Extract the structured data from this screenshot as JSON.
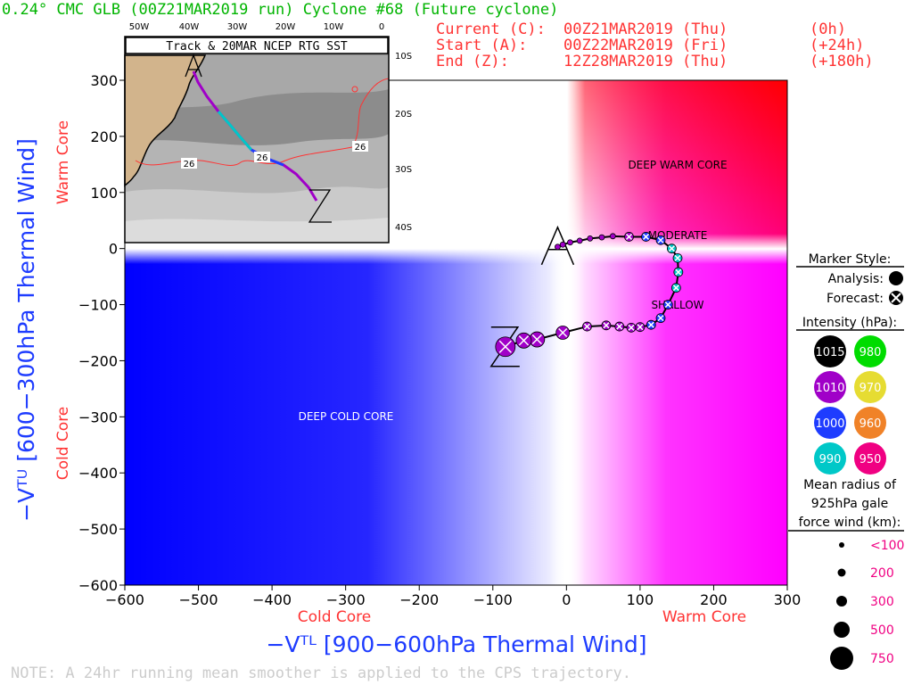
{
  "header": {
    "title": "0.24° CMC GLB (00Z21MAR2019 run) Cyclone #68 (Future cyclone)",
    "current_label": "Current (C):",
    "current_value": "00Z21MAR2019 (Thu)",
    "current_offset": "(0h)",
    "start_label": "Start (A):",
    "start_value": "00Z22MAR2019 (Fri)",
    "start_offset": "(+24h)",
    "end_label": "End (Z):",
    "end_value": "12Z28MAR2019 (Thu)",
    "end_offset": "(+180h)"
  },
  "axes": {
    "x_label": "−Vᵀᴸ [900−600hPa Thermal Wind]",
    "y_label": "−Vᵀᵁ [600−300hPa Thermal Wind]",
    "x_cold": "Cold Core",
    "x_warm": "Warm Core",
    "y_warm": "Warm Core",
    "y_cold": "Cold Core"
  },
  "regions": {
    "deep_warm_core": "DEEP WARM CORE",
    "deep_cold_core": "DEEP COLD CORE",
    "moderate": "MODERATE",
    "shallow": "SHALLOW"
  },
  "inset": {
    "title": "Track & 20MAR NCEP RTG SST",
    "lon_labels": [
      "50W",
      "40W",
      "30W",
      "20W",
      "10W",
      "0"
    ],
    "lat_labels": [
      "10S",
      "20S",
      "30S",
      "40S"
    ],
    "sst_contour_labels": [
      "26",
      "26",
      "26"
    ]
  },
  "legend": {
    "marker_style_title": "Marker Style:",
    "analysis_label": "Analysis:",
    "forecast_label": "Forecast:",
    "intensity_title": "Intensity (hPa):",
    "intensity": [
      {
        "label": "1015",
        "color": "#000000"
      },
      {
        "label": "980",
        "color": "#00dc00"
      },
      {
        "label": "1010",
        "color": "#a000c8"
      },
      {
        "label": "970",
        "color": "#e6dc32"
      },
      {
        "label": "1000",
        "color": "#1e3cff"
      },
      {
        "label": "960",
        "color": "#f08228"
      },
      {
        "label": "990",
        "color": "#00c8c8"
      },
      {
        "label": "950",
        "color": "#f00082"
      }
    ],
    "radius_title_1": "Mean radius of",
    "radius_title_2": "925hPa gale",
    "radius_title_3": "force wind (km):",
    "radius": [
      "<100",
      "200",
      "300",
      "500",
      "750"
    ]
  },
  "note": "NOTE: A 24hr running mean smoother is applied to the CPS trajectory.",
  "chart_data": {
    "type": "scatter",
    "xlim": [
      -600,
      300
    ],
    "ylim": [
      -600,
      300
    ],
    "x_ticks": [
      -600,
      -500,
      -400,
      -300,
      -200,
      -100,
      0,
      100,
      200,
      300
    ],
    "y_ticks": [
      -600,
      -500,
      -400,
      -300,
      -200,
      -100,
      0,
      100,
      200,
      300
    ],
    "grid": false,
    "start_marker": "A",
    "end_marker": "Z",
    "track": [
      {
        "x": -12,
        "y": 3,
        "kind": "analysis",
        "color": "#a000c8",
        "size": 1
      },
      {
        "x": -5,
        "y": 7,
        "kind": "analysis",
        "color": "#a000c8",
        "size": 1
      },
      {
        "x": 5,
        "y": 11,
        "kind": "analysis",
        "color": "#a000c8",
        "size": 1
      },
      {
        "x": 18,
        "y": 14,
        "kind": "analysis",
        "color": "#a000c8",
        "size": 1
      },
      {
        "x": 32,
        "y": 18,
        "kind": "analysis",
        "color": "#a000c8",
        "size": 1
      },
      {
        "x": 48,
        "y": 20,
        "kind": "analysis",
        "color": "#a000c8",
        "size": 1
      },
      {
        "x": 63,
        "y": 22,
        "kind": "analysis",
        "color": "#a000c8",
        "size": 1
      },
      {
        "x": 85,
        "y": 21,
        "kind": "forecast",
        "color": "#a000c8",
        "size": 1
      },
      {
        "x": 108,
        "y": 21,
        "kind": "forecast",
        "color": "#1e3cff",
        "size": 1
      },
      {
        "x": 128,
        "y": 15,
        "kind": "forecast",
        "color": "#1e3cff",
        "size": 1
      },
      {
        "x": 143,
        "y": 0,
        "kind": "forecast",
        "color": "#00c8c8",
        "size": 1
      },
      {
        "x": 151,
        "y": -17,
        "kind": "forecast",
        "color": "#00c8c8",
        "size": 1
      },
      {
        "x": 152,
        "y": -42,
        "kind": "forecast",
        "color": "#00c8c8",
        "size": 1
      },
      {
        "x": 149,
        "y": -70,
        "kind": "forecast",
        "color": "#00c8c8",
        "size": 1
      },
      {
        "x": 138,
        "y": -100,
        "kind": "forecast",
        "color": "#1e3cff",
        "size": 1
      },
      {
        "x": 128,
        "y": -124,
        "kind": "forecast",
        "color": "#1e3cff",
        "size": 1
      },
      {
        "x": 115,
        "y": -136,
        "kind": "forecast",
        "color": "#1e3cff",
        "size": 1
      },
      {
        "x": 100,
        "y": -140,
        "kind": "forecast",
        "color": "#a000c8",
        "size": 1
      },
      {
        "x": 88,
        "y": -141,
        "kind": "forecast",
        "color": "#a000c8",
        "size": 1
      },
      {
        "x": 72,
        "y": -139,
        "kind": "forecast",
        "color": "#a000c8",
        "size": 1
      },
      {
        "x": 54,
        "y": -137,
        "kind": "forecast",
        "color": "#a000c8",
        "size": 1
      },
      {
        "x": 28,
        "y": -139,
        "kind": "forecast",
        "color": "#a000c8",
        "size": 1
      },
      {
        "x": -5,
        "y": -150,
        "kind": "forecast",
        "color": "#a000c8",
        "size": 2
      },
      {
        "x": -40,
        "y": -162,
        "kind": "forecast",
        "color": "#a000c8",
        "size": 3
      },
      {
        "x": -58,
        "y": -164,
        "kind": "forecast",
        "color": "#a000c8",
        "size": 3
      },
      {
        "x": -83,
        "y": -175,
        "kind": "forecast",
        "color": "#a000c8",
        "size": 4
      }
    ]
  }
}
